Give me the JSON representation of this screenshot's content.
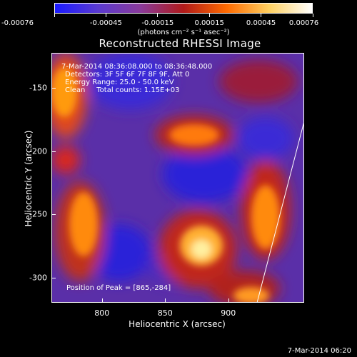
{
  "colorbar": {
    "tick_labels": [
      "-0.00076",
      "-0.00045",
      "-0.00015",
      "0.00015",
      "0.00045",
      "0.00076"
    ],
    "units": "(photons cm⁻² s⁻¹ asec⁻²)",
    "colors": [
      "#1a1aff",
      "#5a3ad0",
      "#8a3a9a",
      "#b01a1a",
      "#ff6a00",
      "#ffd060",
      "#ffffff"
    ]
  },
  "title": "Reconstructed RHESSI Image",
  "annotations": {
    "time_range": "7-Mar-2014 08:36:08.000 to 08:36:48.000",
    "detectors": "Detectors: 3F 5F 6F 7F 8F 9F, Att 0",
    "energy_range": "Energy Range: 25.0 - 50.0 keV",
    "algorithm": "Clean     Total counts: 1.15E+03",
    "peak": "Position of Peak = [865,-284]"
  },
  "axes": {
    "xlabel": "Heliocentric X (arcsec)",
    "ylabel": "Heliocentric Y (arcsec)",
    "x_ticks": [
      "800",
      "850",
      "900"
    ],
    "x_tick_values": [
      800,
      850,
      900
    ],
    "y_ticks": [
      "-150",
      "-200",
      "-250",
      "-300"
    ],
    "y_tick_values": [
      -150,
      -200,
      -250,
      -300
    ],
    "xlim": [
      760,
      960
    ],
    "ylim": [
      -320,
      -122
    ]
  },
  "footer": "7-Mar-2014 06:20"
}
